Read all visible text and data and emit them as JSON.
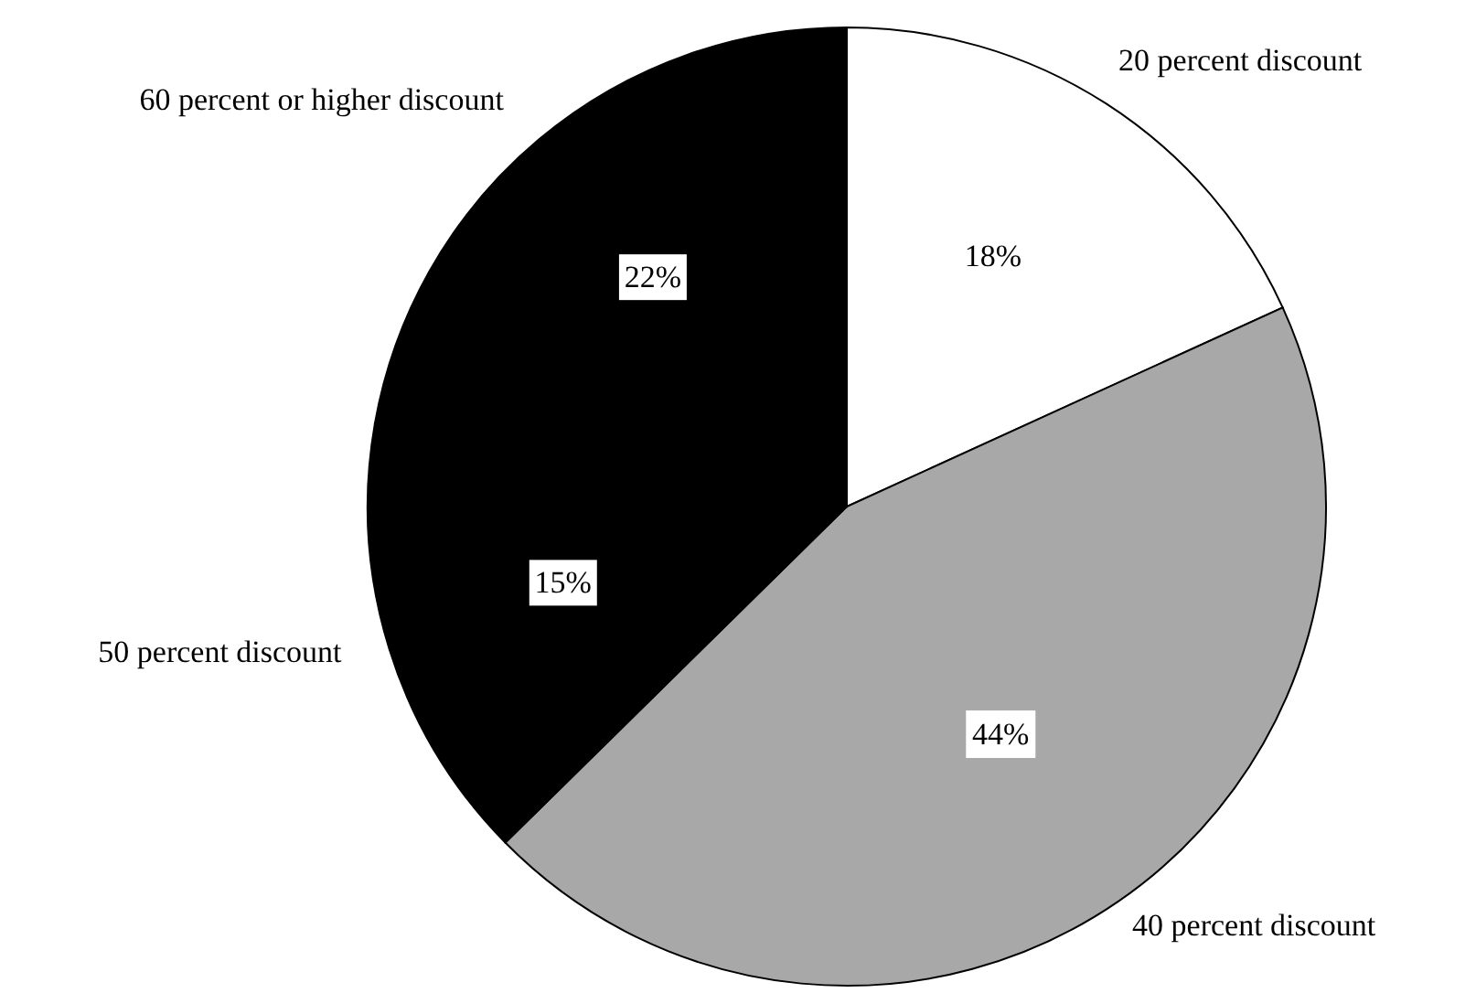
{
  "chart_data": {
    "type": "pie",
    "categories": [
      "20 percent discount",
      "40 percent discount",
      "50 percent discount",
      "60 percent or higher discount"
    ],
    "values": [
      18,
      44,
      15,
      22
    ],
    "colors": [
      "#ffffff",
      "#a8a8a8",
      "#000000",
      "#000000"
    ],
    "value_labels": [
      "18%",
      "44%",
      "15%",
      "22%"
    ]
  }
}
